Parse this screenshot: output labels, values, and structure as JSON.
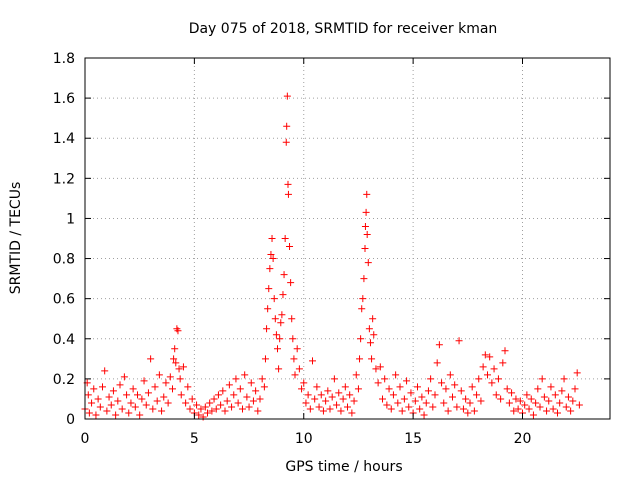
{
  "chart_data": {
    "type": "scatter",
    "title": "Day 075 of 2018, SRMTID for receiver kman",
    "xlabel": "GPS time / hours",
    "ylabel": "SRMTID / TECUs",
    "xlim": [
      0,
      24
    ],
    "ylim": [
      0,
      1.8
    ],
    "xticks": [
      0,
      5,
      10,
      15,
      20
    ],
    "yticks": [
      0,
      0.2,
      0.4,
      0.6,
      0.8,
      1,
      1.2,
      1.4,
      1.6,
      1.8
    ],
    "xtick_labels": [
      "0",
      "5",
      "10",
      "15",
      "20"
    ],
    "ytick_labels": [
      "0",
      "0.2",
      "0.4",
      "0.6",
      "0.8",
      "1",
      "1.2",
      "1.4",
      "1.6",
      "1.8"
    ],
    "grid": true,
    "marker": "+",
    "color": "#ff0000",
    "series": [
      {
        "name": "SRMTID",
        "points": [
          [
            0.0,
            0.05
          ],
          [
            0.1,
            0.18
          ],
          [
            0.15,
            0.12
          ],
          [
            0.2,
            0.03
          ],
          [
            0.3,
            0.08
          ],
          [
            0.4,
            0.15
          ],
          [
            0.5,
            0.02
          ],
          [
            0.6,
            0.1
          ],
          [
            0.7,
            0.06
          ],
          [
            0.8,
            0.16
          ],
          [
            0.9,
            0.24
          ],
          [
            1.0,
            0.04
          ],
          [
            1.1,
            0.11
          ],
          [
            1.2,
            0.07
          ],
          [
            1.3,
            0.14
          ],
          [
            1.4,
            0.02
          ],
          [
            1.5,
            0.09
          ],
          [
            1.6,
            0.17
          ],
          [
            1.7,
            0.05
          ],
          [
            1.8,
            0.21
          ],
          [
            1.9,
            0.12
          ],
          [
            2.0,
            0.03
          ],
          [
            2.1,
            0.08
          ],
          [
            2.2,
            0.15
          ],
          [
            2.3,
            0.06
          ],
          [
            2.4,
            0.12
          ],
          [
            2.5,
            0.02
          ],
          [
            2.6,
            0.1
          ],
          [
            2.7,
            0.19
          ],
          [
            2.8,
            0.07
          ],
          [
            2.9,
            0.13
          ],
          [
            3.0,
            0.3
          ],
          [
            3.1,
            0.05
          ],
          [
            3.2,
            0.16
          ],
          [
            3.3,
            0.09
          ],
          [
            3.4,
            0.22
          ],
          [
            3.5,
            0.04
          ],
          [
            3.6,
            0.11
          ],
          [
            3.7,
            0.18
          ],
          [
            3.8,
            0.08
          ],
          [
            3.9,
            0.21
          ],
          [
            4.0,
            0.15
          ],
          [
            4.05,
            0.3
          ],
          [
            4.1,
            0.35
          ],
          [
            4.15,
            0.28
          ],
          [
            4.2,
            0.45
          ],
          [
            4.25,
            0.44
          ],
          [
            4.3,
            0.25
          ],
          [
            4.35,
            0.2
          ],
          [
            4.4,
            0.12
          ],
          [
            4.5,
            0.26
          ],
          [
            4.6,
            0.08
          ],
          [
            4.7,
            0.16
          ],
          [
            4.8,
            0.05
          ],
          [
            4.9,
            0.1
          ],
          [
            5.0,
            0.03
          ],
          [
            5.1,
            0.07
          ],
          [
            5.2,
            0.02
          ],
          [
            5.3,
            0.05
          ],
          [
            5.4,
            0.01
          ],
          [
            5.5,
            0.06
          ],
          [
            5.6,
            0.03
          ],
          [
            5.7,
            0.08
          ],
          [
            5.8,
            0.04
          ],
          [
            5.9,
            0.1
          ],
          [
            6.0,
            0.05
          ],
          [
            6.1,
            0.12
          ],
          [
            6.2,
            0.07
          ],
          [
            6.3,
            0.14
          ],
          [
            6.4,
            0.04
          ],
          [
            6.5,
            0.09
          ],
          [
            6.6,
            0.17
          ],
          [
            6.7,
            0.06
          ],
          [
            6.8,
            0.12
          ],
          [
            6.9,
            0.2
          ],
          [
            7.0,
            0.08
          ],
          [
            7.1,
            0.15
          ],
          [
            7.2,
            0.05
          ],
          [
            7.3,
            0.22
          ],
          [
            7.4,
            0.11
          ],
          [
            7.5,
            0.06
          ],
          [
            7.6,
            0.18
          ],
          [
            7.7,
            0.09
          ],
          [
            7.8,
            0.14
          ],
          [
            7.9,
            0.04
          ],
          [
            8.0,
            0.1
          ],
          [
            8.1,
            0.2
          ],
          [
            8.2,
            0.16
          ],
          [
            8.25,
            0.3
          ],
          [
            8.3,
            0.45
          ],
          [
            8.35,
            0.55
          ],
          [
            8.4,
            0.65
          ],
          [
            8.45,
            0.75
          ],
          [
            8.5,
            0.82
          ],
          [
            8.55,
            0.9
          ],
          [
            8.6,
            0.8
          ],
          [
            8.65,
            0.6
          ],
          [
            8.7,
            0.5
          ],
          [
            8.75,
            0.42
          ],
          [
            8.8,
            0.35
          ],
          [
            8.85,
            0.25
          ],
          [
            8.9,
            0.4
          ],
          [
            8.95,
            0.48
          ],
          [
            9.0,
            0.52
          ],
          [
            9.05,
            0.62
          ],
          [
            9.1,
            0.72
          ],
          [
            9.15,
            0.9
          ],
          [
            9.2,
            1.38
          ],
          [
            9.22,
            1.46
          ],
          [
            9.25,
            1.61
          ],
          [
            9.28,
            1.17
          ],
          [
            9.3,
            1.12
          ],
          [
            9.35,
            0.86
          ],
          [
            9.4,
            0.68
          ],
          [
            9.45,
            0.5
          ],
          [
            9.5,
            0.4
          ],
          [
            9.55,
            0.3
          ],
          [
            9.6,
            0.22
          ],
          [
            9.7,
            0.35
          ],
          [
            9.8,
            0.25
          ],
          [
            9.9,
            0.15
          ],
          [
            10.0,
            0.18
          ],
          [
            10.1,
            0.08
          ],
          [
            10.2,
            0.12
          ],
          [
            10.3,
            0.05
          ],
          [
            10.4,
            0.29
          ],
          [
            10.5,
            0.1
          ],
          [
            10.6,
            0.16
          ],
          [
            10.7,
            0.06
          ],
          [
            10.8,
            0.12
          ],
          [
            10.9,
            0.04
          ],
          [
            11.0,
            0.09
          ],
          [
            11.1,
            0.14
          ],
          [
            11.2,
            0.05
          ],
          [
            11.3,
            0.11
          ],
          [
            11.4,
            0.2
          ],
          [
            11.5,
            0.07
          ],
          [
            11.6,
            0.13
          ],
          [
            11.7,
            0.04
          ],
          [
            11.8,
            0.1
          ],
          [
            11.9,
            0.16
          ],
          [
            12.0,
            0.06
          ],
          [
            12.1,
            0.12
          ],
          [
            12.2,
            0.03
          ],
          [
            12.3,
            0.09
          ],
          [
            12.4,
            0.22
          ],
          [
            12.5,
            0.15
          ],
          [
            12.55,
            0.3
          ],
          [
            12.6,
            0.4
          ],
          [
            12.65,
            0.55
          ],
          [
            12.7,
            0.6
          ],
          [
            12.75,
            0.7
          ],
          [
            12.8,
            0.85
          ],
          [
            12.82,
            0.96
          ],
          [
            12.85,
            1.03
          ],
          [
            12.88,
            1.12
          ],
          [
            12.9,
            0.92
          ],
          [
            12.95,
            0.78
          ],
          [
            13.0,
            0.45
          ],
          [
            13.05,
            0.38
          ],
          [
            13.1,
            0.3
          ],
          [
            13.15,
            0.5
          ],
          [
            13.2,
            0.42
          ],
          [
            13.3,
            0.25
          ],
          [
            13.4,
            0.18
          ],
          [
            13.5,
            0.26
          ],
          [
            13.6,
            0.1
          ],
          [
            13.7,
            0.2
          ],
          [
            13.8,
            0.07
          ],
          [
            13.9,
            0.15
          ],
          [
            14.0,
            0.05
          ],
          [
            14.1,
            0.12
          ],
          [
            14.2,
            0.22
          ],
          [
            14.3,
            0.08
          ],
          [
            14.4,
            0.16
          ],
          [
            14.5,
            0.04
          ],
          [
            14.6,
            0.1
          ],
          [
            14.7,
            0.19
          ],
          [
            14.8,
            0.06
          ],
          [
            14.9,
            0.13
          ],
          [
            15.0,
            0.03
          ],
          [
            15.1,
            0.09
          ],
          [
            15.2,
            0.16
          ],
          [
            15.3,
            0.05
          ],
          [
            15.4,
            0.11
          ],
          [
            15.5,
            0.02
          ],
          [
            15.6,
            0.08
          ],
          [
            15.7,
            0.14
          ],
          [
            15.8,
            0.2
          ],
          [
            15.9,
            0.06
          ],
          [
            16.0,
            0.12
          ],
          [
            16.1,
            0.28
          ],
          [
            16.2,
            0.37
          ],
          [
            16.3,
            0.18
          ],
          [
            16.4,
            0.08
          ],
          [
            16.5,
            0.15
          ],
          [
            16.6,
            0.04
          ],
          [
            16.7,
            0.22
          ],
          [
            16.8,
            0.11
          ],
          [
            16.9,
            0.17
          ],
          [
            17.0,
            0.06
          ],
          [
            17.1,
            0.39
          ],
          [
            17.2,
            0.14
          ],
          [
            17.3,
            0.05
          ],
          [
            17.4,
            0.1
          ],
          [
            17.5,
            0.03
          ],
          [
            17.6,
            0.08
          ],
          [
            17.7,
            0.16
          ],
          [
            17.8,
            0.04
          ],
          [
            17.9,
            0.12
          ],
          [
            18.0,
            0.2
          ],
          [
            18.1,
            0.09
          ],
          [
            18.2,
            0.26
          ],
          [
            18.3,
            0.32
          ],
          [
            18.4,
            0.22
          ],
          [
            18.5,
            0.31
          ],
          [
            18.6,
            0.18
          ],
          [
            18.7,
            0.25
          ],
          [
            18.8,
            0.12
          ],
          [
            18.9,
            0.2
          ],
          [
            19.0,
            0.1
          ],
          [
            19.1,
            0.28
          ],
          [
            19.2,
            0.34
          ],
          [
            19.3,
            0.15
          ],
          [
            19.4,
            0.08
          ],
          [
            19.5,
            0.13
          ],
          [
            19.6,
            0.04
          ],
          [
            19.7,
            0.1
          ],
          [
            19.8,
            0.05
          ],
          [
            19.9,
            0.09
          ],
          [
            20.0,
            0.03
          ],
          [
            20.1,
            0.07
          ],
          [
            20.2,
            0.12
          ],
          [
            20.3,
            0.05
          ],
          [
            20.4,
            0.1
          ],
          [
            20.5,
            0.02
          ],
          [
            20.6,
            0.08
          ],
          [
            20.7,
            0.15
          ],
          [
            20.8,
            0.06
          ],
          [
            20.9,
            0.2
          ],
          [
            21.0,
            0.11
          ],
          [
            21.1,
            0.04
          ],
          [
            21.2,
            0.09
          ],
          [
            21.3,
            0.16
          ],
          [
            21.4,
            0.05
          ],
          [
            21.5,
            0.12
          ],
          [
            21.6,
            0.03
          ],
          [
            21.7,
            0.08
          ],
          [
            21.8,
            0.14
          ],
          [
            21.9,
            0.2
          ],
          [
            22.0,
            0.06
          ],
          [
            22.1,
            0.11
          ],
          [
            22.2,
            0.04
          ],
          [
            22.3,
            0.09
          ],
          [
            22.4,
            0.15
          ],
          [
            22.5,
            0.23
          ],
          [
            22.6,
            0.07
          ]
        ]
      }
    ]
  }
}
